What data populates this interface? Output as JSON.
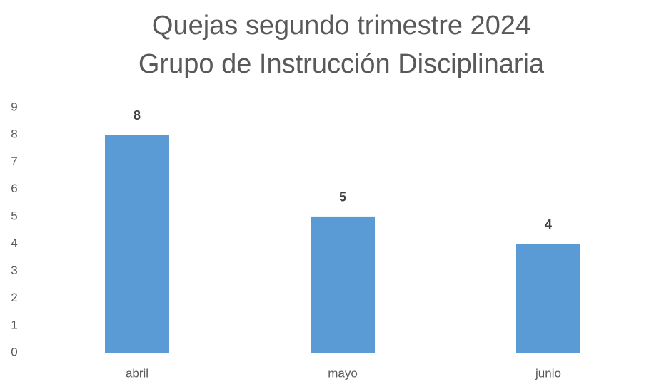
{
  "chart_data": {
    "type": "bar",
    "title": [
      "Quejas segundo trimestre 2024",
      "Grupo de Instrucción Disciplinaria"
    ],
    "categories": [
      "abril",
      "mayo",
      "junio"
    ],
    "values": [
      8,
      5,
      4
    ],
    "color": "#5b9bd5",
    "ylim": [
      0,
      9
    ],
    "yticks": [
      0,
      1,
      2,
      3,
      4,
      5,
      6,
      7,
      8,
      9
    ],
    "grid": false
  }
}
